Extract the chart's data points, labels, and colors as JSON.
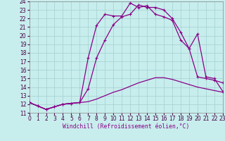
{
  "background_color": "#c8eded",
  "grid_color": "#a8d4d4",
  "line_color": "#880088",
  "xlim": [
    0,
    23
  ],
  "ylim": [
    11,
    24
  ],
  "xticks": [
    0,
    1,
    2,
    3,
    4,
    5,
    6,
    7,
    8,
    9,
    10,
    11,
    12,
    13,
    14,
    15,
    16,
    17,
    18,
    19,
    20,
    21,
    22,
    23
  ],
  "yticks": [
    11,
    12,
    13,
    14,
    15,
    16,
    17,
    18,
    19,
    20,
    21,
    22,
    23,
    24
  ],
  "xlabel": "Windchill (Refroidissement éolien,°C)",
  "curve1_x": [
    0,
    1,
    2,
    3,
    4,
    5,
    6,
    7,
    8,
    9,
    10,
    11,
    12,
    13,
    14,
    15,
    16,
    17,
    18,
    19,
    20,
    21,
    22,
    23
  ],
  "curve1_y": [
    12.2,
    11.8,
    11.4,
    11.7,
    12.0,
    12.1,
    12.2,
    13.8,
    17.4,
    19.5,
    21.3,
    22.2,
    22.5,
    23.6,
    23.3,
    23.3,
    23.0,
    22.0,
    20.4,
    18.5,
    20.2,
    15.2,
    15.0,
    13.5
  ],
  "curve2_x": [
    0,
    1,
    2,
    3,
    4,
    5,
    6,
    7,
    8,
    9,
    10,
    11,
    12,
    13,
    14,
    15,
    16,
    17,
    18,
    19,
    20,
    21,
    22,
    23
  ],
  "curve2_y": [
    12.2,
    11.8,
    11.4,
    11.7,
    12.0,
    12.1,
    12.2,
    17.4,
    21.2,
    22.5,
    22.3,
    22.3,
    23.8,
    23.3,
    23.5,
    22.5,
    22.2,
    21.8,
    19.5,
    18.5,
    15.2,
    15.0,
    14.8,
    14.5
  ],
  "curve3_x": [
    0,
    1,
    2,
    3,
    4,
    5,
    6,
    7,
    8,
    9,
    10,
    11,
    12,
    13,
    14,
    15,
    16,
    17,
    18,
    19,
    20,
    21,
    22,
    23
  ],
  "curve3_y": [
    12.2,
    11.8,
    11.4,
    11.7,
    12.0,
    12.1,
    12.2,
    12.3,
    12.6,
    13.0,
    13.4,
    13.7,
    14.1,
    14.5,
    14.8,
    15.1,
    15.1,
    14.9,
    14.6,
    14.3,
    14.0,
    13.8,
    13.6,
    13.4
  ],
  "linewidth": 0.9,
  "markersize": 3.5,
  "tick_labelsize": 5.5,
  "xlabel_fontsize": 5.8
}
